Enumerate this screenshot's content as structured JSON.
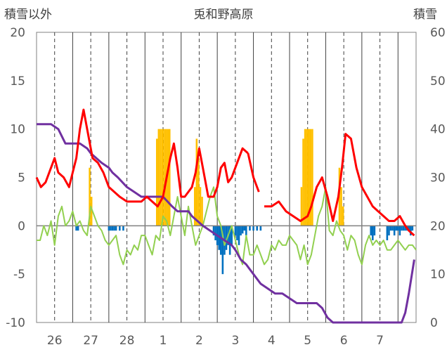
{
  "chart_data": {
    "type": "bar+line",
    "title": "兎和野高原",
    "ylabel_left": "積雪以外",
    "ylabel_right": "積雪",
    "ylim_left": [
      -10,
      20
    ],
    "ylim_right": [
      0,
      60
    ],
    "yticks_left": [
      "20",
      "15",
      "10",
      "5",
      "0",
      "-5",
      "-10"
    ],
    "yticks_right": [
      "60",
      "50",
      "40",
      "30",
      "20",
      "10",
      "0"
    ],
    "x_range_days": [
      0,
      10.5
    ],
    "x_ticks": [
      {
        "label": "26",
        "day": 0.5
      },
      {
        "label": "27",
        "day": 1.5
      },
      {
        "label": "28",
        "day": 2.5
      },
      {
        "label": "1",
        "day": 3.5
      },
      {
        "label": "2",
        "day": 4.5
      },
      {
        "label": "3",
        "day": 5.5
      },
      {
        "label": "4",
        "day": 6.5
      },
      {
        "label": "5",
        "day": 7.5
      },
      {
        "label": "6",
        "day": 8.5
      },
      {
        "label": "7",
        "day": 9.5
      }
    ],
    "grid": true,
    "colors": {
      "temp_line": "#ff0000",
      "snow_depth_line": "#7030a0",
      "snow_change_line": "#92d050",
      "precip_bars": "#ffc000",
      "negative_bars": "#0070c0",
      "axis_text": "#595959",
      "grid": "#404040"
    },
    "series": [
      {
        "type": "line",
        "color_key": "temp_line",
        "axis": "left",
        "x": [
          0,
          0.12,
          0.25,
          0.4,
          0.5,
          0.6,
          0.75,
          0.9,
          1.0,
          1.1,
          1.2,
          1.3,
          1.4,
          1.55,
          1.7,
          1.85,
          2.0,
          2.15,
          2.3,
          2.5,
          2.7,
          2.9,
          3.05,
          3.2,
          3.35,
          3.5,
          3.6,
          3.7,
          3.8,
          3.9,
          4.0,
          4.1,
          4.2,
          4.3,
          4.4,
          4.5,
          4.6,
          4.75,
          4.9,
          5.0,
          5.1,
          5.2,
          5.3,
          5.4,
          5.55,
          5.7,
          5.85
        ],
        "y": [
          5,
          4,
          4.5,
          6,
          7,
          5.5,
          5,
          4,
          5.5,
          7,
          10,
          12,
          10,
          7,
          6.5,
          5.5,
          4,
          3.5,
          3,
          2.5,
          2.5,
          2.5,
          3,
          2.5,
          2,
          3,
          5,
          7,
          8.5,
          6,
          3,
          3,
          3.5,
          4,
          5.5,
          8,
          6,
          3,
          3,
          4,
          6,
          6.5,
          4.5,
          5,
          6.5,
          8,
          7.5
        ]
      },
      {
        "type": "line",
        "color_key": "temp_line",
        "axis": "left",
        "x": [
          5.85,
          6.0,
          6.15
        ],
        "y": [
          7.5,
          5,
          3.5
        ]
      },
      {
        "type": "line",
        "color_key": "temp_line",
        "axis": "left",
        "x": [
          6.3,
          6.5,
          6.7,
          6.9,
          7.1,
          7.3,
          7.5,
          7.6,
          7.75,
          7.9,
          8.05,
          8.2,
          8.35,
          8.45,
          8.55,
          8.7,
          8.85,
          9.0,
          9.15,
          9.3,
          9.45,
          9.6,
          9.75,
          9.9,
          10.05,
          10.2,
          10.3,
          10.45
        ],
        "y": [
          2,
          2,
          2.5,
          1.5,
          1,
          0.5,
          1,
          2,
          4,
          5,
          3,
          0.5,
          3,
          6,
          9.5,
          9,
          6,
          4,
          3,
          2,
          1.5,
          1,
          0.5,
          0.5,
          1,
          0,
          -0.5,
          -1
        ]
      },
      {
        "type": "line",
        "color_key": "snow_depth_line",
        "axis": "right",
        "x": [
          0,
          0.4,
          0.6,
          0.8,
          1.0,
          1.2,
          1.4,
          1.5,
          1.8,
          2.0,
          2.1,
          2.25,
          2.5,
          2.7,
          2.9,
          3.1,
          3.35,
          3.5,
          3.75,
          3.9,
          4.0,
          4.1,
          4.2,
          4.3,
          4.45,
          4.6,
          4.8,
          5.0,
          5.2,
          5.4,
          5.5,
          5.65,
          5.8,
          6.0,
          6.2,
          6.4,
          6.6,
          6.8,
          7.0,
          7.2,
          7.4,
          7.6,
          7.75,
          7.9,
          8.05,
          8.2,
          8.4,
          8.6,
          8.8,
          9.0,
          9.2,
          9.4,
          9.6,
          9.75,
          9.9,
          10.0,
          10.1,
          10.2,
          10.3,
          10.45
        ],
        "y": [
          41,
          41,
          40,
          37,
          37,
          37,
          36,
          35,
          33,
          32,
          31,
          30,
          28,
          27,
          26,
          26,
          26,
          26,
          24,
          23,
          23,
          23,
          23,
          22,
          21,
          20,
          19,
          18,
          17,
          16,
          15,
          13,
          12,
          10,
          8,
          7,
          6,
          6,
          5,
          4,
          4,
          4,
          4,
          3,
          1,
          0,
          0,
          0,
          0,
          0,
          0,
          0,
          0,
          0,
          0,
          0,
          0,
          2,
          6,
          13
        ]
      },
      {
        "type": "line",
        "color_key": "snow_change_line",
        "axis": "left",
        "x": [
          0,
          0.1,
          0.2,
          0.3,
          0.4,
          0.5,
          0.6,
          0.7,
          0.8,
          0.9,
          1.0,
          1.1,
          1.2,
          1.3,
          1.4,
          1.5,
          1.6,
          1.7,
          1.8,
          1.9,
          2.0,
          2.1,
          2.2,
          2.3,
          2.4,
          2.5,
          2.6,
          2.7,
          2.8,
          2.9,
          3.0,
          3.1,
          3.2,
          3.3,
          3.4,
          3.5,
          3.6,
          3.7,
          3.8,
          3.9,
          4.0,
          4.1,
          4.2,
          4.3,
          4.4,
          4.5,
          4.6,
          4.7,
          4.8,
          4.9,
          5.0,
          5.1,
          5.2,
          5.3,
          5.4,
          5.5,
          5.6,
          5.7,
          5.8,
          5.9,
          6.0,
          6.1,
          6.2,
          6.3,
          6.4,
          6.5,
          6.6,
          6.7,
          6.8,
          6.9,
          7.0,
          7.1,
          7.2,
          7.3,
          7.4,
          7.5,
          7.6,
          7.7,
          7.8,
          7.9,
          8.0,
          8.1,
          8.2,
          8.3,
          8.4,
          8.5,
          8.6,
          8.7,
          8.8,
          8.9,
          9.0,
          9.1,
          9.2,
          9.3,
          9.4,
          9.5,
          9.6,
          9.7,
          9.8,
          9.9,
          10.0,
          10.1,
          10.2,
          10.3,
          10.4,
          10.5
        ],
        "y": [
          -1.5,
          -1.5,
          0,
          -1,
          0.5,
          -2,
          1,
          2,
          0,
          0.5,
          1.5,
          0,
          0.5,
          -0.5,
          -1,
          2,
          1,
          0,
          -0.5,
          -1.5,
          -2,
          -1.5,
          -1,
          -3,
          -4,
          -2.5,
          -3,
          -2,
          -2.5,
          -1,
          -1,
          -2,
          -3,
          -1,
          -1.5,
          1,
          0.5,
          -1,
          1,
          3,
          1,
          -1,
          2,
          0,
          -2,
          -1,
          0,
          1.5,
          3,
          4,
          1,
          0,
          -2,
          -1,
          0,
          -1.5,
          -3,
          -4,
          -1,
          -3,
          -3,
          -2,
          -3,
          -4,
          -3.5,
          -2,
          -2.5,
          -1.5,
          -2,
          -2,
          -1,
          -1.5,
          -2,
          -3.5,
          -2,
          -4,
          -3,
          -1,
          1,
          2,
          4,
          -0.5,
          -1,
          0.5,
          -0.5,
          -1,
          -2.5,
          -1,
          -1.5,
          -3,
          -4,
          -2,
          -1,
          -2,
          -1.5,
          -2,
          -1.5,
          -2.5,
          -2.5,
          -2,
          -1.5,
          -2,
          -2.5,
          -2,
          -2,
          -2.5
        ]
      },
      {
        "type": "bar",
        "color_key": "precip_bars",
        "axis": "left",
        "x": [
          1.47,
          1.52,
          3.33,
          3.38,
          3.43,
          3.48,
          3.53,
          3.58,
          3.63,
          3.68,
          4.38,
          4.43,
          4.48,
          4.53,
          4.58,
          7.33,
          7.38,
          7.43,
          7.48,
          7.53,
          7.58,
          7.63,
          8.38,
          8.43,
          8.48
        ],
        "y": [
          6,
          3,
          9,
          10,
          10,
          10,
          10,
          10,
          10,
          10,
          4,
          9,
          7,
          4,
          3,
          4,
          9,
          10,
          10,
          10,
          10,
          10,
          6,
          4,
          2
        ]
      },
      {
        "type": "bar",
        "color_key": "negative_bars",
        "axis": "left",
        "x": [
          1.1,
          1.15,
          2.0,
          2.05,
          2.1,
          2.15,
          2.2,
          2.3,
          2.4,
          4.9,
          4.95,
          5.0,
          5.05,
          5.1,
          5.15,
          5.2,
          5.25,
          5.3,
          5.35,
          5.4,
          5.5,
          5.55,
          5.6,
          5.65,
          5.7,
          5.75,
          5.8,
          5.9,
          6.0,
          6.1,
          6.2,
          9.25,
          9.3,
          9.35,
          9.7,
          9.75,
          9.8,
          9.85,
          9.9,
          9.95,
          10.0,
          10.05,
          10.1,
          10.15,
          10.2,
          10.25,
          10.3,
          10.35,
          10.4
        ],
        "y": [
          -0.5,
          -0.5,
          -0.5,
          -0.5,
          -0.5,
          -0.5,
          -0.5,
          -0.5,
          -0.5,
          -1,
          -1.5,
          -2,
          -2.5,
          -3,
          -5,
          -3,
          -2.5,
          -2,
          -3,
          -2,
          -1,
          -1.5,
          -2,
          -1,
          -0.8,
          -0.5,
          -1,
          -0.5,
          -0.5,
          -0.5,
          -0.5,
          -1,
          -1.5,
          -1,
          -1.5,
          -1,
          -0.5,
          -0.5,
          -1,
          -0.5,
          -0.5,
          -1,
          -0.5,
          -0.5,
          -0.5,
          -0.5,
          -0.5,
          -1,
          -0.5
        ]
      }
    ]
  }
}
